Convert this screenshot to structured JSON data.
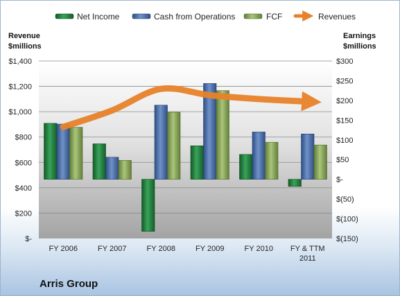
{
  "chart_data": {
    "type": "bar",
    "categories": [
      "FY 2006",
      "FY 2007",
      "FY 2008",
      "FY 2009",
      "FY 2010",
      "FY & TTM 2011"
    ],
    "series": [
      {
        "name": "Net Income",
        "axis": "right",
        "color": "#1f7a3a",
        "values": [
          142,
          90,
          -132,
          85,
          63,
          -18
        ]
      },
      {
        "name": "Cash from Operations",
        "axis": "right",
        "color": "#4a6fa8",
        "values": [
          140,
          56,
          188,
          243,
          120,
          115
        ]
      },
      {
        "name": "FCF",
        "axis": "right",
        "color": "#8cac58",
        "values": [
          132,
          48,
          170,
          225,
          94,
          87
        ]
      },
      {
        "name": "Revenues",
        "axis": "left",
        "type": "line",
        "color": "#e8822a",
        "values": [
          880,
          1010,
          1180,
          1130,
          1100,
          1080
        ]
      }
    ],
    "y_left": {
      "label": "Revenue $millions",
      "range": [
        0,
        1400
      ],
      "ticks": [
        0,
        200,
        400,
        600,
        800,
        1000,
        1200,
        1400
      ],
      "tick_labels": [
        "$-",
        "$200",
        "$400",
        "$600",
        "$800",
        "$1,000",
        "$1,200",
        "$1,400"
      ]
    },
    "y_right": {
      "label": "Earnings $millions",
      "range": [
        -150,
        300
      ],
      "ticks": [
        -150,
        -100,
        -50,
        0,
        50,
        100,
        150,
        200,
        250,
        300
      ],
      "tick_labels": [
        "$(150)",
        "$(100)",
        "$(50)",
        "$-",
        "$50",
        "$100",
        "$150",
        "$200",
        "$250",
        "$300"
      ]
    },
    "x_tick_labels": [
      [
        "FY 2006"
      ],
      [
        "FY 2007"
      ],
      [
        "FY 2008"
      ],
      [
        "FY 2009"
      ],
      [
        "FY 2010"
      ],
      [
        "FY & TTM",
        "2011"
      ]
    ],
    "title": "Arris Group",
    "legend_position": "top",
    "grid": true
  },
  "labels": {
    "left_axis_line1": "Revenue",
    "left_axis_line2": "$millions",
    "right_axis_line1": "Earnings",
    "right_axis_line2": "$millions",
    "company": "Arris Group"
  }
}
